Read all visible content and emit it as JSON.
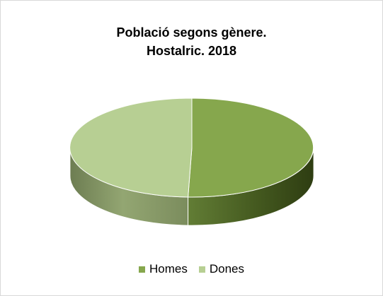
{
  "chart_data": {
    "type": "pie",
    "title_lines": [
      "Població segons gènere.",
      "Hostalric. 2018"
    ],
    "categories": [
      "Homes",
      "Dones"
    ],
    "values": [
      50.5,
      49.5
    ],
    "colors": [
      "#86a74d",
      "#b7cf93"
    ],
    "legend_position": "bottom",
    "style": "3d"
  }
}
